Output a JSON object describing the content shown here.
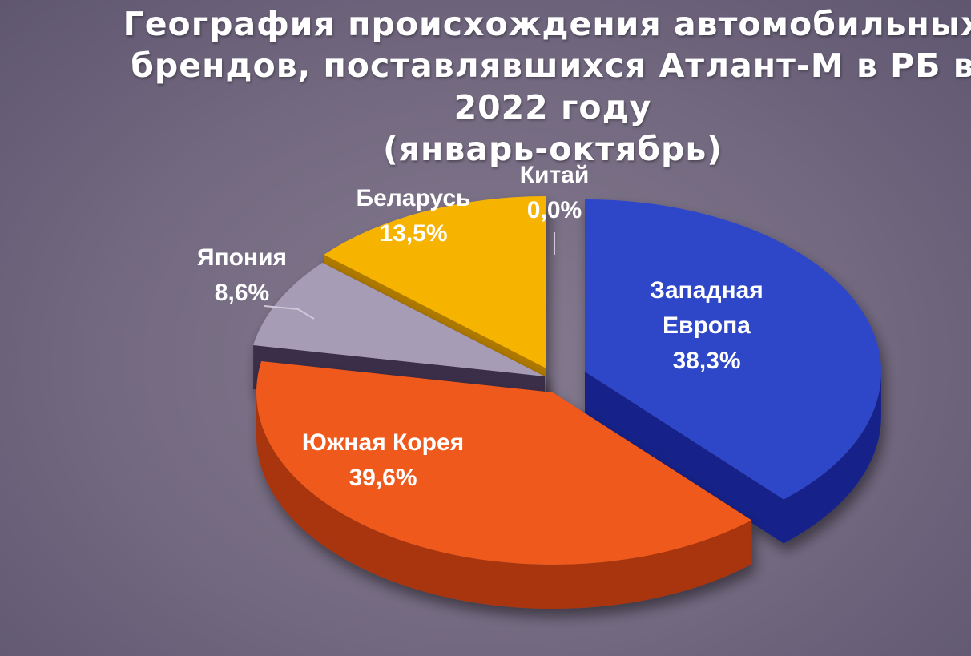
{
  "chart_data": {
    "type": "pie",
    "title": [
      "География происхождения автомобильных",
      "брендов, поставлявшихся Атлант-М в РБ в",
      "2022 году",
      "(январь-октябрь)"
    ],
    "slices": [
      {
        "name": "Западная Европа",
        "label_lines": [
          "Западная",
          "Европа"
        ],
        "value": 38.3,
        "value_label": "38,3%",
        "color": "#2f47c9",
        "side_color": "#16238a"
      },
      {
        "name": "Южная Корея",
        "label_lines": [
          "Южная Корея"
        ],
        "value": 39.6,
        "value_label": "39,6%",
        "color": "#ef5a1e",
        "side_color": "#a8340f"
      },
      {
        "name": "Япония",
        "label_lines": [
          "Япония"
        ],
        "value": 8.6,
        "value_label": "8,6%",
        "color": "#a79cb6",
        "side_color": "#3a2d48"
      },
      {
        "name": "Беларусь",
        "label_lines": [
          "Беларусь"
        ],
        "value": 13.5,
        "value_label": "13,5%",
        "color": "#f6b400",
        "side_color": "#b07a00"
      },
      {
        "name": "Китай",
        "label_lines": [
          "Китай"
        ],
        "value": 0.0,
        "value_label": "0,0%",
        "color": "#888888",
        "side_color": "#555555"
      }
    ],
    "legend": "none",
    "data_labels": "category and percent"
  }
}
